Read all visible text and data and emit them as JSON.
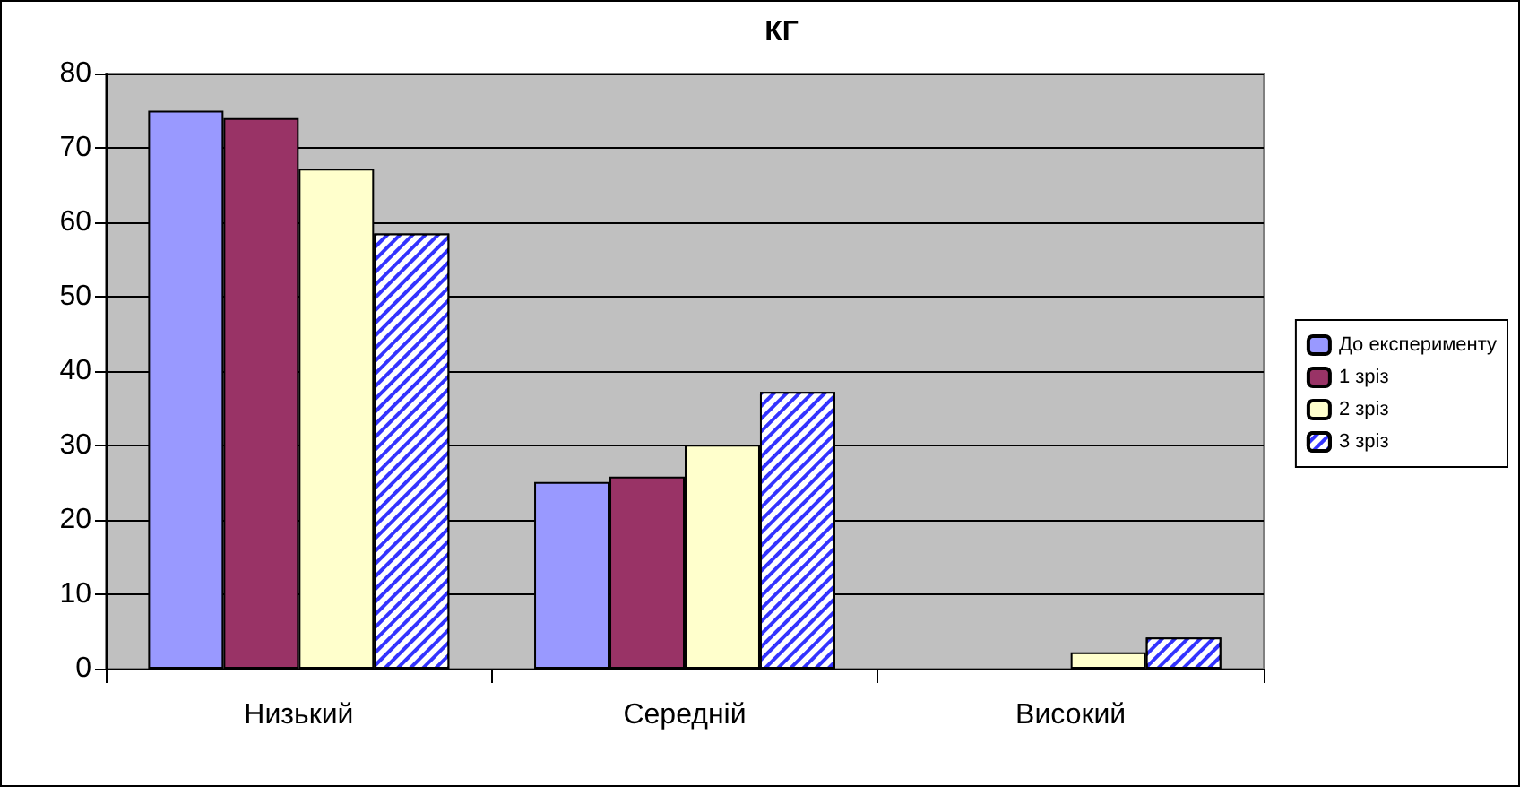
{
  "chart_data": {
    "type": "bar",
    "title": "КГ",
    "categories": [
      "Низький",
      "Середній",
      "Високий"
    ],
    "series": [
      {
        "name": "До експерименту",
        "color": "#9999ff",
        "values": [
          75,
          25.1,
          null
        ]
      },
      {
        "name": "1 зріз",
        "color": "#993366",
        "values": [
          74,
          25.8,
          null
        ]
      },
      {
        "name": "2 зріз",
        "color": "#ffffcc",
        "values": [
          67.2,
          30.1,
          2.2
        ]
      },
      {
        "name": "3 зріз",
        "color": "#3333ff",
        "values": [
          58.5,
          37.2,
          4.2
        ]
      }
    ],
    "ylim": [
      0,
      80
    ],
    "yticks": [
      0,
      10,
      20,
      30,
      40,
      50,
      60,
      70,
      80
    ],
    "grid": "y",
    "legend": "right"
  }
}
